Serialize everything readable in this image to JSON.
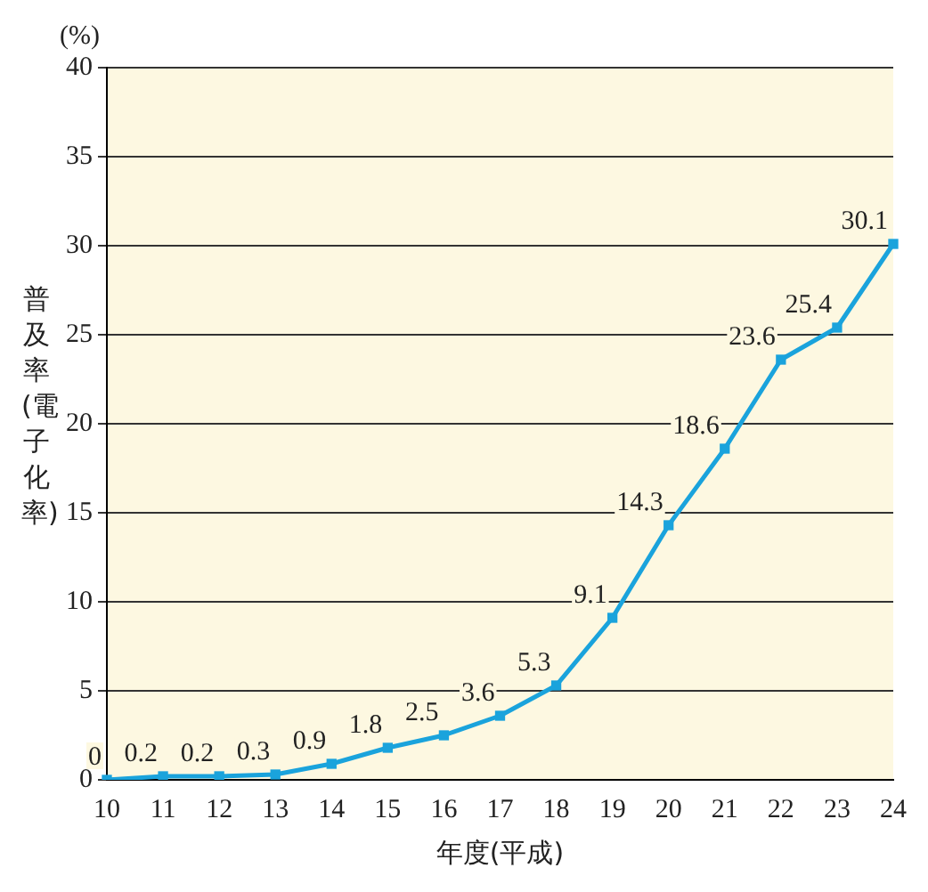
{
  "chart_data": {
    "type": "line",
    "xlabel": "年度(平成)",
    "ylabel": "普及率(電子化率)",
    "annotations": [
      "(%)"
    ],
    "categories": [
      "10",
      "11",
      "12",
      "13",
      "14",
      "15",
      "16",
      "17",
      "18",
      "19",
      "20",
      "21",
      "22",
      "23",
      "24"
    ],
    "series": [
      {
        "color": "#1aa3dc",
        "values": [
          0,
          0.2,
          0.2,
          0.3,
          0.9,
          1.8,
          2.5,
          3.6,
          5.3,
          9.1,
          14.3,
          18.6,
          23.6,
          25.4,
          30.1
        ]
      }
    ],
    "ylim": [
      0,
      40
    ],
    "yticks": [
      0,
      5,
      10,
      15,
      20,
      25,
      30,
      35,
      40
    ],
    "grid": "y",
    "legend": false,
    "marker": "square",
    "line_style": "solid",
    "data_labels": true
  }
}
